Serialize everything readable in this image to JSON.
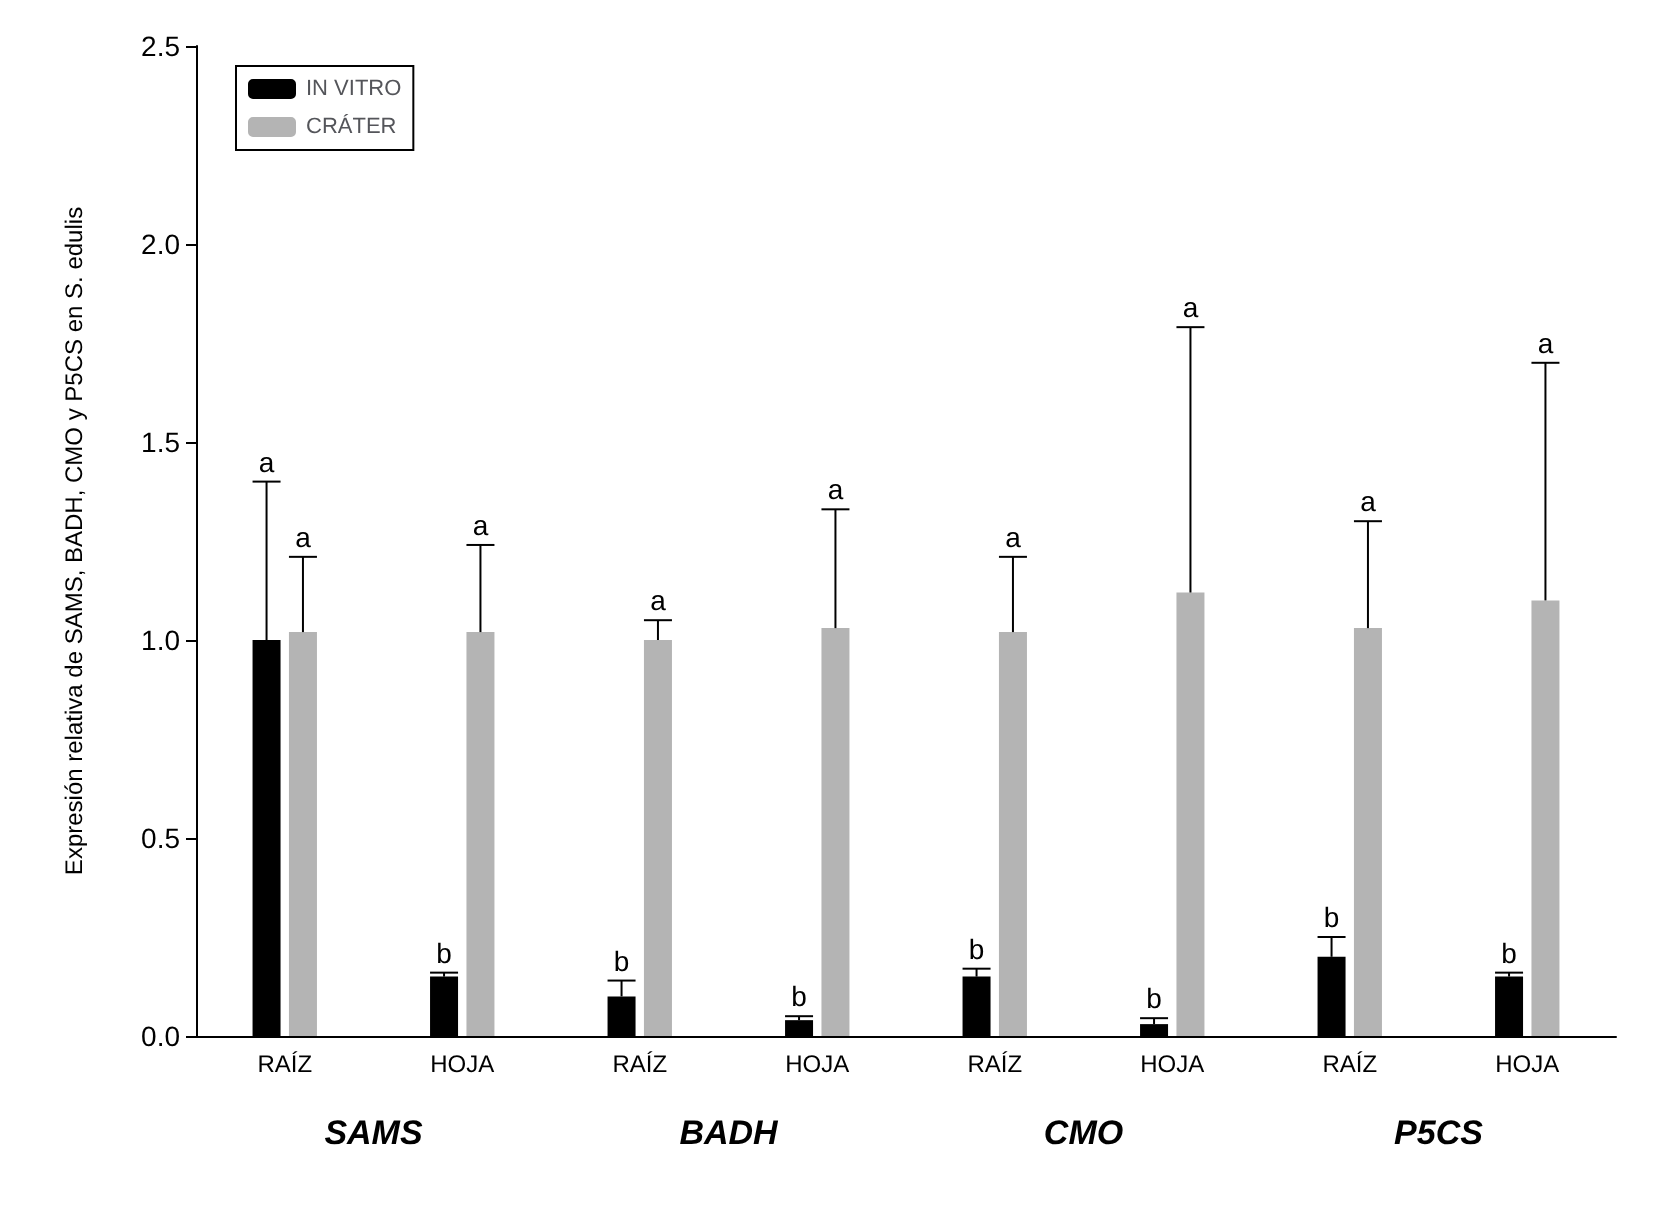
{
  "chart_data": {
    "type": "bar",
    "ylabel": "Expresión relativa de SAMS, BADH, CMO y P5CS en S. edulis",
    "categories": [
      "RAÍZ",
      "HOJA",
      "RAÍZ",
      "HOJA",
      "RAÍZ",
      "HOJA",
      "RAÍZ",
      "HOJA"
    ],
    "series": [
      {
        "name": "IN VITRO",
        "color": "#000000",
        "values": [
          1.0,
          0.15,
          0.1,
          0.04,
          0.15,
          0.03,
          0.2,
          0.15
        ],
        "errors": [
          [
            1.0,
            1.4
          ],
          [
            0.15,
            0.16
          ],
          [
            0.1,
            0.14
          ],
          [
            0.04,
            0.05
          ],
          [
            0.15,
            0.17
          ],
          [
            0.03,
            0.045
          ],
          [
            0.2,
            0.25
          ],
          [
            0.15,
            0.16
          ]
        ]
      },
      {
        "name": "CRÁTER",
        "color": "#b4b4b4",
        "values": [
          1.02,
          1.02,
          1.0,
          1.03,
          1.02,
          1.12,
          1.03,
          1.1
        ],
        "errors": [
          [
            1.02,
            1.21
          ],
          [
            1.02,
            1.24
          ],
          [
            1.0,
            1.05
          ],
          [
            1.03,
            1.33
          ],
          [
            1.02,
            1.21
          ],
          [
            1.12,
            1.79
          ],
          [
            1.03,
            1.3
          ],
          [
            1.1,
            1.7
          ]
        ]
      }
    ],
    "annotations": [
      "SAMS",
      "BADH",
      "CMO",
      "P5CS",
      "a",
      "b",
      "b",
      "b",
      "b",
      "b",
      "b",
      "b",
      "a",
      "a",
      "a",
      "a",
      "a",
      "a",
      "a",
      "a"
    ],
    "ylim": [
      0,
      2.5
    ],
    "yticks": [
      {
        "value": 0,
        "label": "0.0"
      },
      {
        "value": 0.5,
        "label": "0.5"
      },
      {
        "value": 1,
        "label": "1.0"
      },
      {
        "value": 1.5,
        "label": "1.5"
      },
      {
        "value": 2,
        "label": "2.0"
      },
      {
        "value": 2.5,
        "label": "2.5"
      }
    ],
    "legend": "top left",
    "grid": false
  }
}
